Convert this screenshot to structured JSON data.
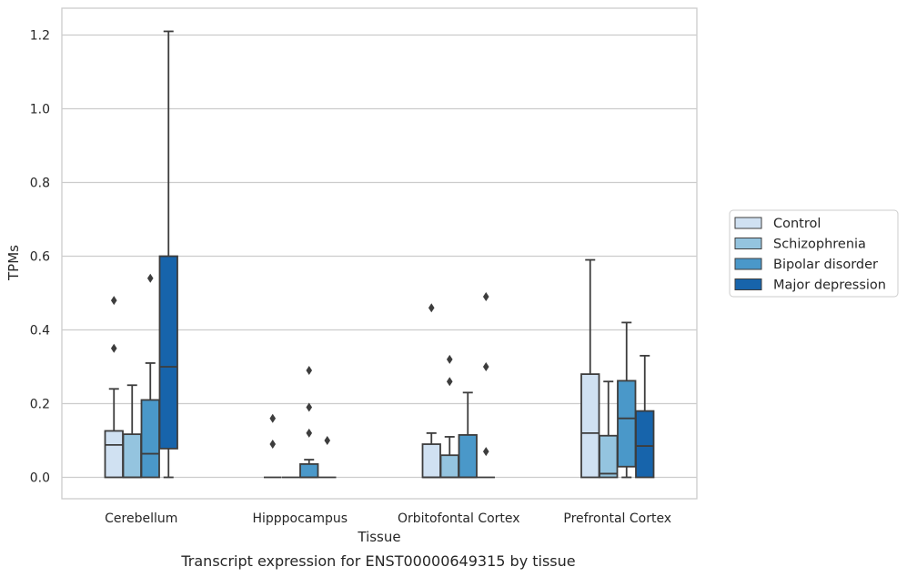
{
  "caption": "Transcript expression for ENST00000649315 by tissue",
  "chart_data": {
    "type": "box",
    "xlabel": "Tissue",
    "ylabel": "TPMs",
    "ylim": [
      -0.06,
      1.27
    ],
    "yticks": [
      0.0,
      0.2,
      0.4,
      0.6,
      0.8,
      1.0,
      1.2
    ],
    "ytick_labels": [
      "0.0",
      "0.2",
      "0.4",
      "0.6",
      "0.8",
      "1.0",
      "1.2"
    ],
    "grid": true,
    "legend_position": "right",
    "categories": [
      "Cerebellum",
      "Hipppocampus",
      "Orbitofontal Cortex",
      "Prefrontal Cortex"
    ],
    "series": [
      {
        "name": "Control",
        "color": "#d0e1f2",
        "boxes": [
          {
            "min": 0.0,
            "q1": 0.0,
            "median": 0.088,
            "q3": 0.126,
            "max": 0.24,
            "outliers": [
              0.35,
              0.48
            ]
          },
          {
            "min": 0.0,
            "q1": 0.0,
            "median": 0.0,
            "q3": 0.0,
            "max": 0.0,
            "outliers": [
              0.09,
              0.16
            ]
          },
          {
            "min": 0.0,
            "q1": 0.0,
            "median": 0.0,
            "q3": 0.09,
            "max": 0.12,
            "outliers": [
              0.46
            ]
          },
          {
            "min": 0.0,
            "q1": 0.0,
            "median": 0.12,
            "q3": 0.28,
            "max": 0.59,
            "outliers": []
          }
        ]
      },
      {
        "name": "Schizophrenia",
        "color": "#94c4df",
        "boxes": [
          {
            "min": 0.0,
            "q1": 0.0,
            "median": 0.0,
            "q3": 0.117,
            "max": 0.25,
            "outliers": []
          },
          {
            "min": 0.0,
            "q1": 0.0,
            "median": 0.0,
            "q3": 0.0,
            "max": 0.0,
            "outliers": []
          },
          {
            "min": 0.0,
            "q1": 0.0,
            "median": 0.0,
            "q3": 0.06,
            "max": 0.11,
            "outliers": [
              0.26,
              0.32
            ]
          },
          {
            "min": 0.0,
            "q1": 0.0,
            "median": 0.01,
            "q3": 0.113,
            "max": 0.26,
            "outliers": []
          }
        ]
      },
      {
        "name": "Bipolar disorder",
        "color": "#4a98c9",
        "boxes": [
          {
            "min": 0.0,
            "q1": 0.0,
            "median": 0.064,
            "q3": 0.21,
            "max": 0.31,
            "outliers": [
              0.54
            ]
          },
          {
            "min": 0.0,
            "q1": 0.0,
            "median": 0.0,
            "q3": 0.036,
            "max": 0.048,
            "outliers": [
              0.12,
              0.19,
              0.29
            ]
          },
          {
            "min": 0.0,
            "q1": 0.0,
            "median": 0.0,
            "q3": 0.115,
            "max": 0.23,
            "outliers": []
          },
          {
            "min": 0.0,
            "q1": 0.029,
            "median": 0.16,
            "q3": 0.262,
            "max": 0.42,
            "outliers": []
          }
        ]
      },
      {
        "name": "Major depression",
        "color": "#1764ab",
        "boxes": [
          {
            "min": 0.0,
            "q1": 0.078,
            "median": 0.3,
            "q3": 0.6,
            "max": 1.21,
            "outliers": []
          },
          {
            "min": 0.0,
            "q1": 0.0,
            "median": 0.0,
            "q3": 0.0,
            "max": 0.0,
            "outliers": [
              0.1
            ]
          },
          {
            "min": 0.0,
            "q1": 0.0,
            "median": 0.0,
            "q3": 0.0,
            "max": 0.0,
            "outliers": [
              0.07,
              0.3,
              0.49
            ]
          },
          {
            "min": 0.0,
            "q1": 0.0,
            "median": 0.085,
            "q3": 0.18,
            "max": 0.33,
            "outliers": []
          }
        ]
      }
    ]
  }
}
